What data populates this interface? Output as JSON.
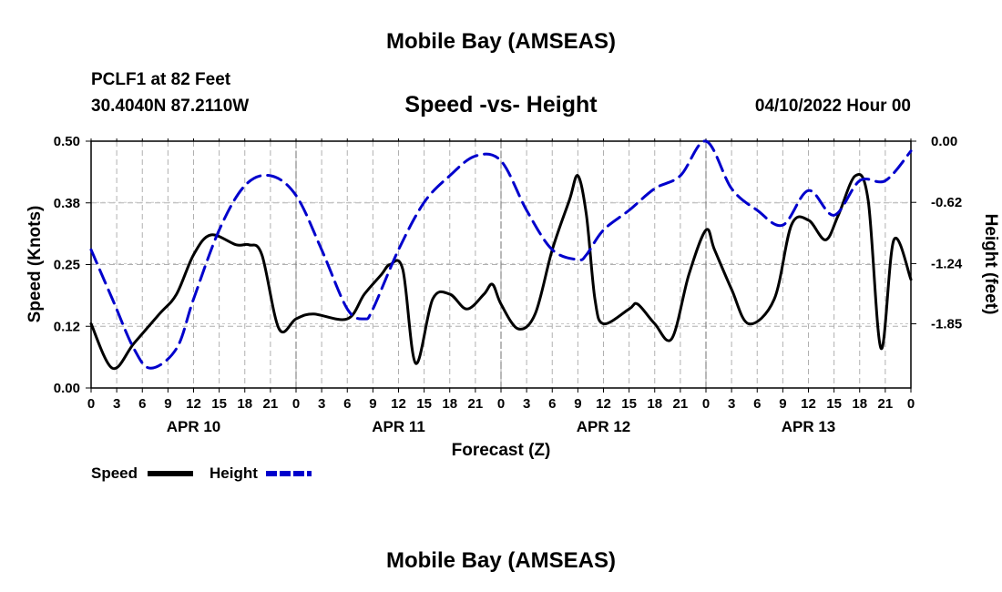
{
  "page": {
    "title": "Mobile Bay (AMSEAS)",
    "station": "PCLF1 at 82 Feet",
    "coords": "30.4040N  87.2110W",
    "subtitle": "Speed -vs- Height",
    "datetime": "04/10/2022 Hour 00",
    "footer_title": "Mobile Bay (AMSEAS)"
  },
  "chart_data": {
    "type": "line",
    "title": "Speed -vs- Height",
    "xlabel": "Forecast (Z)",
    "ylabel_left": "Speed (Knots)",
    "ylabel_right": "Height (feet)",
    "x_range_hours": [
      0,
      96
    ],
    "ylim_left": [
      0,
      0.5
    ],
    "ylim_right": [
      -2.5,
      0.0
    ],
    "left_ticks": [
      "0.00",
      "0.12",
      "0.25",
      "0.38",
      "0.50"
    ],
    "left_tick_values": [
      0,
      0.125,
      0.25,
      0.375,
      0.5
    ],
    "right_ticks": [
      "-1.85",
      "-1.24",
      "-0.62",
      "0.00"
    ],
    "right_tick_values": [
      -1.85,
      -1.24,
      -0.62,
      0.0
    ],
    "x_tick_labels": [
      "0",
      "3",
      "6",
      "9",
      "12",
      "15",
      "18",
      "21",
      "0",
      "3",
      "6",
      "9",
      "12",
      "15",
      "18",
      "21",
      "0",
      "3",
      "6",
      "9",
      "12",
      "15",
      "18",
      "21",
      "0",
      "3",
      "6",
      "9",
      "12",
      "15",
      "18",
      "21",
      "0"
    ],
    "day_labels": [
      {
        "label": "APR 10",
        "hour": 12
      },
      {
        "label": "APR 11",
        "hour": 36
      },
      {
        "label": "APR 12",
        "hour": 60
      },
      {
        "label": "APR 13",
        "hour": 84
      }
    ],
    "legend": [
      {
        "name": "Speed",
        "color": "#000000",
        "style": "solid"
      },
      {
        "name": "Height",
        "color": "#0000cc",
        "style": "dashed"
      }
    ],
    "series": [
      {
        "name": "Speed",
        "axis": "left",
        "color": "#000000",
        "x": [
          0,
          2.5,
          5,
          8,
          10,
          12,
          14,
          17,
          18.5,
          20,
          22,
          24,
          26,
          30,
          32,
          34,
          35,
          36.5,
          38,
          40,
          42,
          44,
          46,
          47,
          48,
          50,
          52,
          54,
          56,
          57,
          58,
          59,
          60,
          63,
          64,
          66,
          68,
          70,
          72,
          73,
          75,
          77,
          80,
          82,
          84,
          86,
          87.5,
          89.5,
          91,
          92.5,
          94,
          96
        ],
        "values": [
          0.13,
          0.04,
          0.09,
          0.15,
          0.19,
          0.27,
          0.31,
          0.29,
          0.29,
          0.27,
          0.12,
          0.14,
          0.15,
          0.14,
          0.19,
          0.23,
          0.25,
          0.24,
          0.05,
          0.18,
          0.19,
          0.16,
          0.19,
          0.21,
          0.17,
          0.12,
          0.15,
          0.28,
          0.38,
          0.43,
          0.35,
          0.18,
          0.13,
          0.16,
          0.17,
          0.13,
          0.1,
          0.23,
          0.32,
          0.28,
          0.2,
          0.13,
          0.18,
          0.33,
          0.34,
          0.3,
          0.35,
          0.43,
          0.38,
          0.08,
          0.3,
          0.22
        ]
      },
      {
        "name": "Height",
        "axis": "right",
        "color": "#0000cc",
        "x": [
          0,
          2.5,
          5,
          7,
          10,
          12,
          15,
          18,
          21,
          24,
          27,
          30,
          32,
          33,
          36,
          39,
          42,
          45,
          48,
          51,
          54,
          57,
          58,
          60,
          63,
          66,
          69,
          72,
          75,
          78,
          81,
          84,
          87,
          90,
          93,
          96
        ],
        "values": [
          -1.1,
          -1.6,
          -2.1,
          -2.3,
          -2.1,
          -1.6,
          -0.9,
          -0.45,
          -0.35,
          -0.55,
          -1.1,
          -1.7,
          -1.8,
          -1.7,
          -1.1,
          -0.62,
          -0.35,
          -0.15,
          -0.2,
          -0.7,
          -1.1,
          -1.2,
          -1.15,
          -0.9,
          -0.7,
          -0.48,
          -0.35,
          0.0,
          -0.48,
          -0.7,
          -0.85,
          -0.5,
          -0.75,
          -0.4,
          -0.4,
          -0.1
        ]
      }
    ]
  }
}
